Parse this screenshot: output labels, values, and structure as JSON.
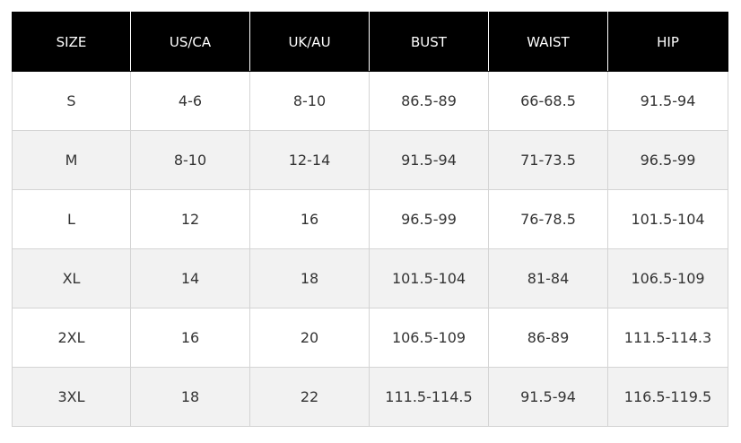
{
  "table": {
    "headers": [
      "SIZE",
      "US/CA",
      "UK/AU",
      "BUST",
      "WAIST",
      "HIP"
    ],
    "rows": [
      [
        "S",
        "4-6",
        "8-10",
        "86.5-89",
        "66-68.5",
        "91.5-94"
      ],
      [
        "M",
        "8-10",
        "12-14",
        "91.5-94",
        "71-73.5",
        "96.5-99"
      ],
      [
        "L",
        "12",
        "16",
        "96.5-99",
        "76-78.5",
        "101.5-104"
      ],
      [
        "XL",
        "14",
        "18",
        "101.5-104",
        "81-84",
        "106.5-109"
      ],
      [
        "2XL",
        "16",
        "20",
        "106.5-109",
        "86-89",
        "111.5-114.3"
      ],
      [
        "3XL",
        "18",
        "22",
        "111.5-114.5",
        "91.5-94",
        "116.5-119.5"
      ]
    ]
  },
  "colors": {
    "header_background": "#000000",
    "header_text": "#ffffff",
    "row_alt_background": "#f2f2f2",
    "border": "#d4d4d4"
  }
}
